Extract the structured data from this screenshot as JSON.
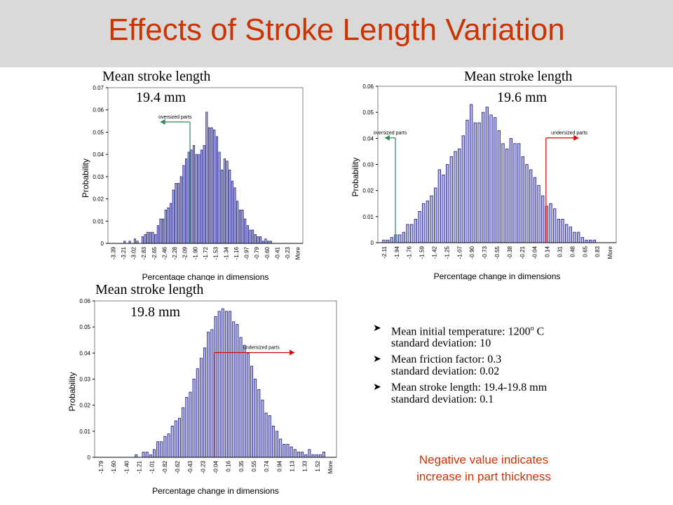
{
  "page": {
    "title": "Effects of Stroke Length Variation",
    "title_color": "#cc3300",
    "band_color": "#d9d9d9"
  },
  "bullets": [
    {
      "line1_pre": "Mean initial temperature: 1200",
      "line1_sup": "o",
      "line1_post": " C",
      "line2": "standard deviation: 10"
    },
    {
      "line1_pre": "Mean friction factor: 0.3",
      "line1_sup": "",
      "line1_post": "",
      "line2": "standard deviation: 0.02"
    },
    {
      "line1_pre": "Mean stroke length: 19.4-19.8 mm",
      "line1_sup": "",
      "line1_post": "",
      "line2": "standard deviation: 0.1"
    }
  ],
  "note": {
    "line1": "Negative value indicates",
    "line2": "increase in part thickness"
  },
  "chart_data": [
    {
      "type": "bar",
      "heading": "Mean stroke length",
      "subheading": "19.4 mm",
      "xlabel": "Percentage change in dimensions",
      "ylabel": "Probability",
      "ylim": [
        0,
        0.07
      ],
      "yticks": [
        "0",
        "0.01",
        "0.02",
        "0.03",
        "0.04",
        "0.05",
        "0.06",
        "0.07"
      ],
      "tick_labels": [
        "-3.39",
        "-3.21",
        "-3.02",
        "-2.83",
        "-2.65",
        "-2.46",
        "-2.28",
        "-2.09",
        "-1.90",
        "-1.72",
        "-1.53",
        "-1.34",
        "-1.16",
        "-0.97",
        "-0.79",
        "-0.60",
        "-0.41",
        "-0.23",
        "More"
      ],
      "values": [
        0,
        0,
        0,
        0,
        0,
        0,
        0.001,
        0,
        0.001,
        0,
        0.002,
        0.001,
        0,
        0.003,
        0.004,
        0.005,
        0.005,
        0.005,
        0.004,
        0.008,
        0.011,
        0.011,
        0.015,
        0.016,
        0.018,
        0.024,
        0.027,
        0.027,
        0.03,
        0.035,
        0.038,
        0.041,
        0.042,
        0.044,
        0.04,
        0.04,
        0.042,
        0.044,
        0.059,
        0.052,
        0.052,
        0.051,
        0.048,
        0.041,
        0.033,
        0.038,
        0.037,
        0.033,
        0.028,
        0.025,
        0.019,
        0.015,
        0.015,
        0.011,
        0.008,
        0.006,
        0.006,
        0.004,
        0.003,
        0.003,
        0.001,
        0.002,
        0.001,
        0.001,
        0,
        0,
        0,
        0,
        0,
        0,
        0,
        0,
        0,
        0,
        0,
        0
      ],
      "annotations": [
        {
          "text": "oversized parts",
          "direction": "left",
          "color": "#2e8b57",
          "from_tick": 7.5,
          "to_tick": 4.6
        }
      ]
    },
    {
      "type": "bar",
      "heading": "Mean stroke length",
      "subheading": "19.6 mm",
      "xlabel": "Percentage change in dimensions",
      "ylabel": "Probability",
      "ylim": [
        0,
        0.06
      ],
      "yticks": [
        "0",
        "0.01",
        "0.02",
        "0.03",
        "0.04",
        "0.05",
        "0.06"
      ],
      "tick_labels": [
        "-2.11",
        "-1.94",
        "-1.76",
        "-1.59",
        "-1.42",
        "-1.25",
        "-1.07",
        "-0.90",
        "-0.73",
        "-0.55",
        "-0.38",
        "-0.21",
        "-0.04",
        "0.14",
        "0.31",
        "0.48",
        "0.65",
        "0.83",
        "More"
      ],
      "values": [
        0,
        0.001,
        0.001,
        0.002,
        0.003,
        0.003,
        0.004,
        0.007,
        0.007,
        0.009,
        0.012,
        0.015,
        0.016,
        0.018,
        0.021,
        0.028,
        0.026,
        0.03,
        0.033,
        0.035,
        0.036,
        0.041,
        0.047,
        0.053,
        0.046,
        0.046,
        0.05,
        0.052,
        0.049,
        0.048,
        0.043,
        0.038,
        0.036,
        0.04,
        0.038,
        0.038,
        0.033,
        0.03,
        0.028,
        0.025,
        0.022,
        0.018,
        0.014,
        0.015,
        0.013,
        0.009,
        0.009,
        0.007,
        0.006,
        0.004,
        0.004,
        0.002,
        0.001,
        0.001,
        0.001,
        0,
        0,
        0,
        0,
        0
      ],
      "annotations": [
        {
          "text": "oversized parts",
          "direction": "left",
          "color": "#2e8b57",
          "from_tick": 0.9,
          "to_tick": 0.05
        },
        {
          "text": "undersized parts",
          "direction": "right",
          "color": "#e00000",
          "from_tick": 12.9,
          "to_tick": 15.5
        }
      ]
    },
    {
      "type": "bar",
      "heading": "Mean stroke length",
      "subheading": "19.8 mm",
      "xlabel": "Percentage change in dimensions",
      "ylabel": "Probability",
      "ylim": [
        0,
        0.06
      ],
      "yticks": [
        "0",
        "0.01",
        "0.02",
        "0.03",
        "0.04",
        "0.05",
        "0.06"
      ],
      "tick_labels": [
        "-1.79",
        "-1.60",
        "-1.40",
        "-1.21",
        "-1.01",
        "-0.82",
        "-0.62",
        "-0.43",
        "-0.23",
        "-0.04",
        "0.16",
        "0.35",
        "0.55",
        "0.74",
        "0.94",
        "1.13",
        "1.33",
        "1.52",
        "More"
      ],
      "values": [
        0,
        0,
        0,
        0,
        0,
        0,
        0,
        0,
        0,
        0,
        0,
        0.001,
        0,
        0.002,
        0.002,
        0.001,
        0.003,
        0.006,
        0.006,
        0.008,
        0.009,
        0.012,
        0.014,
        0.015,
        0.019,
        0.023,
        0.025,
        0.03,
        0.034,
        0.038,
        0.042,
        0.048,
        0.049,
        0.054,
        0.056,
        0.057,
        0.056,
        0.056,
        0.052,
        0.051,
        0.046,
        0.043,
        0.04,
        0.035,
        0.03,
        0.026,
        0.022,
        0.017,
        0.016,
        0.012,
        0.01,
        0.007,
        0.005,
        0.005,
        0.004,
        0.003,
        0.002,
        0.002,
        0.001,
        0.003,
        0.001,
        0.001,
        0.001,
        0.002,
        0,
        0,
        0
      ],
      "annotations": [
        {
          "text": "undersized parts",
          "direction": "right",
          "color": "#e00000",
          "from_tick": 8.9,
          "to_tick": 15.2
        }
      ]
    }
  ]
}
